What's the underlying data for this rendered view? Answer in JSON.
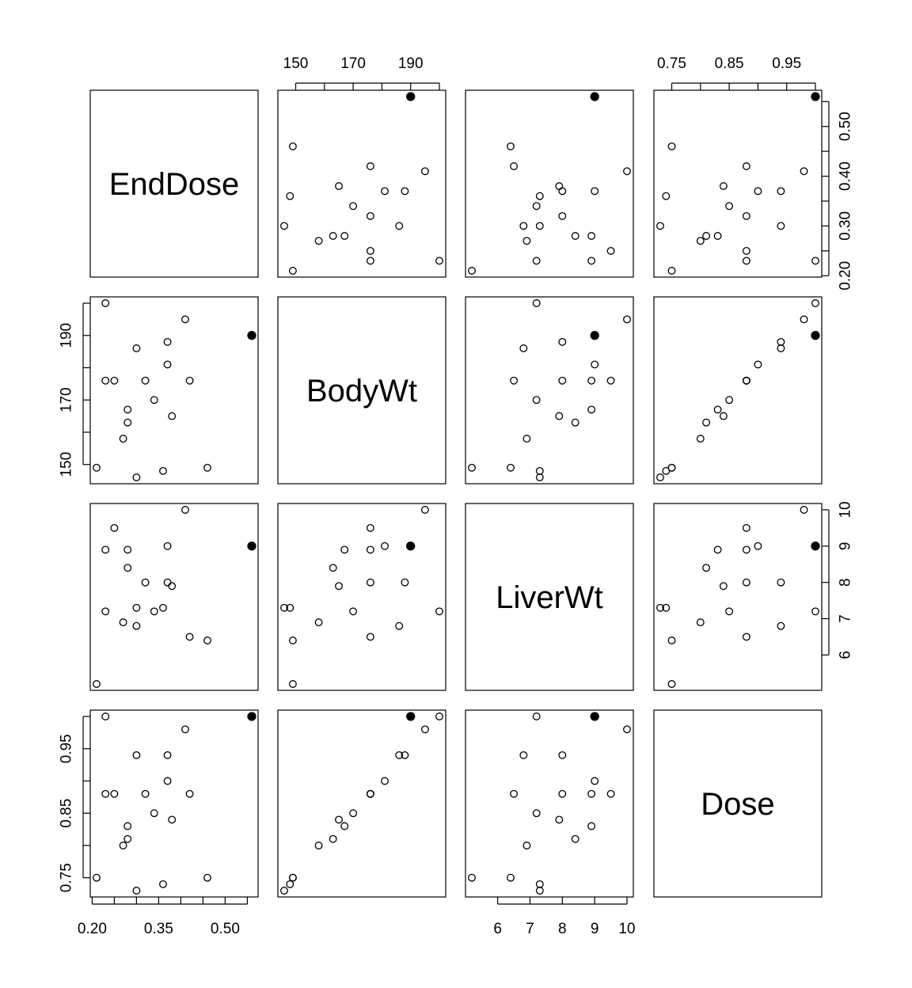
{
  "chart_data": {
    "type": "scatter",
    "kind": "scatterplot-matrix",
    "variables": [
      "EndDose",
      "BodyWt",
      "LiverWt",
      "Dose"
    ],
    "ranges": {
      "EndDose": [
        0.21,
        0.56
      ],
      "BodyWt": [
        146,
        200
      ],
      "LiverWt": [
        5.2,
        10.0
      ],
      "Dose": [
        0.73,
        1.0
      ]
    },
    "ticks": {
      "EndDose": {
        "values": [
          0.2,
          0.25,
          0.3,
          0.35,
          0.4,
          0.45,
          0.5,
          0.55
        ],
        "labels": [
          "0.20",
          "",
          "0.30",
          "",
          "0.40",
          "",
          "0.50",
          ""
        ],
        "bottom_labels": [
          "0.20",
          "",
          "",
          "0.35",
          "",
          "",
          "0.50",
          ""
        ]
      },
      "BodyWt": {
        "values": [
          150,
          160,
          170,
          180,
          190,
          200
        ],
        "labels": [
          "150",
          "",
          "170",
          "",
          "190",
          ""
        ]
      },
      "LiverWt": {
        "values": [
          6,
          7,
          8,
          9,
          10
        ],
        "labels": [
          "6",
          "7",
          "8",
          "9",
          "10"
        ]
      },
      "Dose": {
        "values": [
          0.75,
          0.8,
          0.85,
          0.9,
          0.95,
          1.0
        ],
        "labels": [
          "0.75",
          "",
          "0.85",
          "",
          "0.95",
          ""
        ]
      }
    },
    "axes": {
      "top": [
        "BodyWt",
        "Dose"
      ],
      "right": [
        "EndDose",
        "LiverWt"
      ],
      "left": [
        "BodyWt",
        "Dose"
      ],
      "bottom": [
        "EndDose",
        "LiverWt"
      ]
    },
    "highlight_index": 2,
    "points": [
      {
        "EndDose": 0.42,
        "BodyWt": 176,
        "LiverWt": 6.5,
        "Dose": 0.88
      },
      {
        "EndDose": 0.25,
        "BodyWt": 176,
        "LiverWt": 9.5,
        "Dose": 0.88
      },
      {
        "EndDose": 0.56,
        "BodyWt": 190,
        "LiverWt": 9.0,
        "Dose": 1.0
      },
      {
        "EndDose": 0.23,
        "BodyWt": 176,
        "LiverWt": 8.9,
        "Dose": 0.88
      },
      {
        "EndDose": 0.23,
        "BodyWt": 200,
        "LiverWt": 7.2,
        "Dose": 1.0
      },
      {
        "EndDose": 0.28,
        "BodyWt": 167,
        "LiverWt": 8.9,
        "Dose": 0.83
      },
      {
        "EndDose": 0.3,
        "BodyWt": 186,
        "LiverWt": 6.8,
        "Dose": 0.94
      },
      {
        "EndDose": 0.37,
        "BodyWt": 188,
        "LiverWt": 8.0,
        "Dose": 0.94
      },
      {
        "EndDose": 0.32,
        "BodyWt": 176,
        "LiverWt": 8.0,
        "Dose": 0.88
      },
      {
        "EndDose": 0.34,
        "BodyWt": 170,
        "LiverWt": 7.2,
        "Dose": 0.85
      },
      {
        "EndDose": 0.28,
        "BodyWt": 163,
        "LiverWt": 8.4,
        "Dose": 0.81
      },
      {
        "EndDose": 0.37,
        "BodyWt": 181,
        "LiverWt": 9.0,
        "Dose": 0.9
      },
      {
        "EndDose": 0.38,
        "BodyWt": 165,
        "LiverWt": 7.9,
        "Dose": 0.84
      },
      {
        "EndDose": 0.41,
        "BodyWt": 195,
        "LiverWt": 10.0,
        "Dose": 0.98
      },
      {
        "EndDose": 0.27,
        "BodyWt": 158,
        "LiverWt": 6.9,
        "Dose": 0.8
      },
      {
        "EndDose": 0.36,
        "BodyWt": 148,
        "LiverWt": 7.3,
        "Dose": 0.74
      },
      {
        "EndDose": 0.3,
        "BodyWt": 146,
        "LiverWt": 7.3,
        "Dose": 0.73
      },
      {
        "EndDose": 0.46,
        "BodyWt": 149,
        "LiverWt": 6.4,
        "Dose": 0.75
      },
      {
        "EndDose": 0.21,
        "BodyWt": 149,
        "LiverWt": 5.2,
        "Dose": 0.75
      }
    ]
  }
}
